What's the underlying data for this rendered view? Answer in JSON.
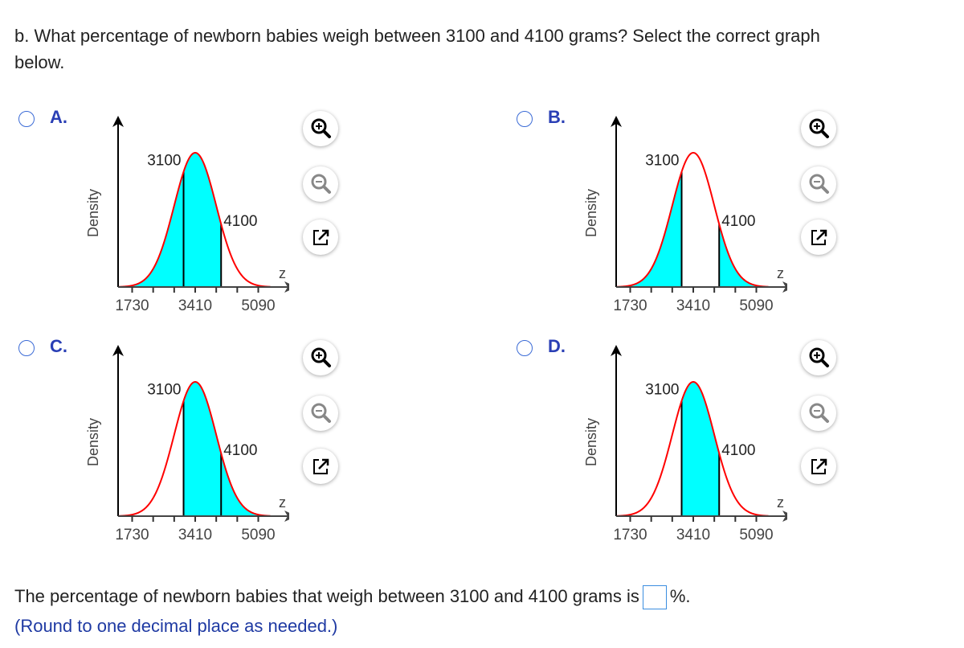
{
  "question": {
    "line1": "b. What percentage of newborn babies weigh between 3100 and 4100 grams? Select the correct graph",
    "line2": "below."
  },
  "chart_data": [
    {
      "option": "A.",
      "type": "area",
      "distribution": "normal",
      "mean": 3410,
      "sd": 560,
      "ticks": [
        1730,
        2290,
        2850,
        3410,
        3970,
        4530,
        5090
      ],
      "tick_labels": [
        "1730",
        "3410",
        "5090"
      ],
      "xlabel": "z",
      "ylabel": "Density",
      "markers": [
        "3100",
        "4100"
      ],
      "shaded": "left of 4100",
      "shade_ranges": [
        [
          null,
          4100
        ]
      ]
    },
    {
      "option": "B.",
      "type": "area",
      "distribution": "normal",
      "mean": 3410,
      "sd": 560,
      "ticks": [
        1730,
        2290,
        2850,
        3410,
        3970,
        4530,
        5090
      ],
      "tick_labels": [
        "1730",
        "3410",
        "5090"
      ],
      "xlabel": "z",
      "ylabel": "Density",
      "markers": [
        "3100",
        "4100"
      ],
      "shaded": "tails outside 3100-4100",
      "shade_ranges": [
        [
          null,
          3100
        ],
        [
          4100,
          null
        ]
      ]
    },
    {
      "option": "C.",
      "type": "area",
      "distribution": "normal",
      "mean": 3410,
      "sd": 560,
      "ticks": [
        1730,
        2290,
        2850,
        3410,
        3970,
        4530,
        5090
      ],
      "tick_labels": [
        "1730",
        "3410",
        "5090"
      ],
      "xlabel": "z",
      "ylabel": "Density",
      "markers": [
        "3100",
        "4100"
      ],
      "shaded": "right of 3100",
      "shade_ranges": [
        [
          3100,
          null
        ]
      ]
    },
    {
      "option": "D.",
      "type": "area",
      "distribution": "normal",
      "mean": 3410,
      "sd": 560,
      "ticks": [
        1730,
        2290,
        2850,
        3410,
        3970,
        4530,
        5090
      ],
      "tick_labels": [
        "1730",
        "3410",
        "5090"
      ],
      "xlabel": "z",
      "ylabel": "Density",
      "markers": [
        "3100",
        "4100"
      ],
      "shaded": "between 3100 and 4100",
      "shade_ranges": [
        [
          3100,
          4100
        ]
      ]
    }
  ],
  "colors": {
    "fill": "#00ffff",
    "curve": "#ff0000",
    "option_label": "#2a3fb5",
    "radio": "#3b6bd6"
  },
  "icons": [
    "zoom-in-icon",
    "zoom-out-icon",
    "open-external-icon"
  ],
  "answer": {
    "prefix": "The percentage of newborn babies that weigh between 3100 and 4100 grams is",
    "value": "",
    "suffix": "%.",
    "note": "(Round to one decimal place as needed.)"
  }
}
